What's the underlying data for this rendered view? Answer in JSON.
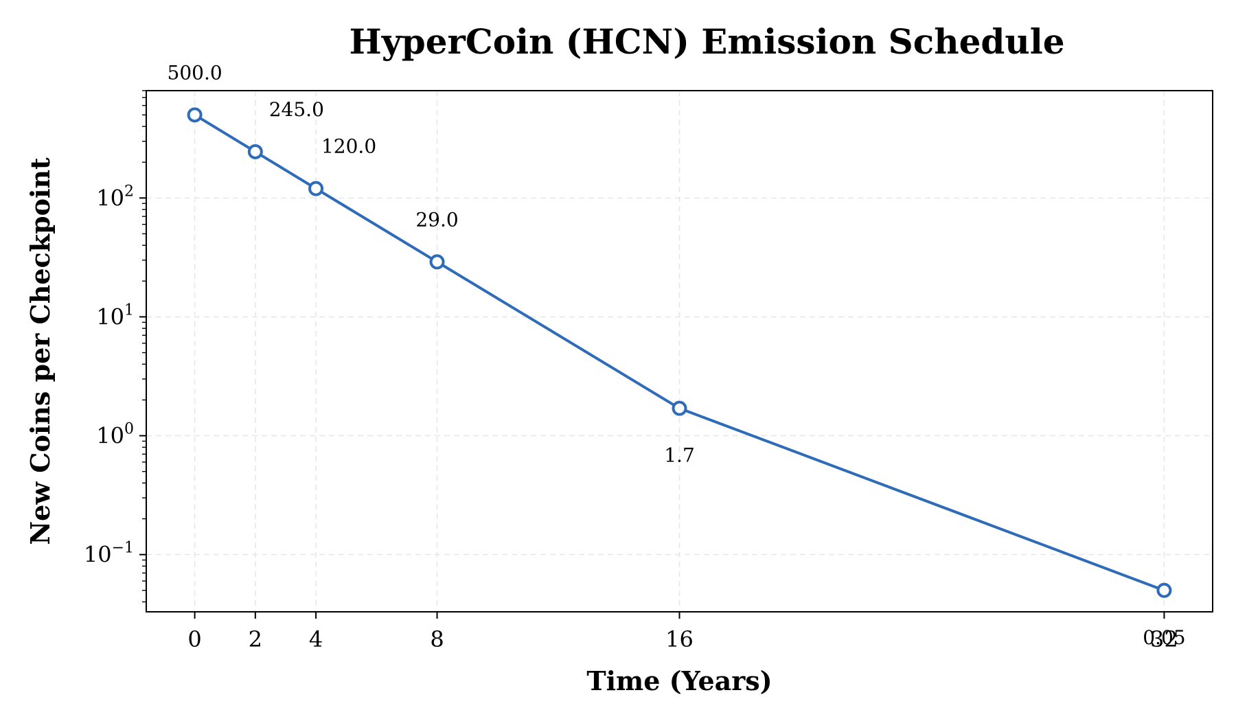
{
  "chart_data": {
    "type": "line",
    "title": "HyperCoin (HCN) Emission Schedule",
    "xlabel": "Time (Years)",
    "ylabel": "New Coins per Checkpoint",
    "x": [
      0,
      2,
      4,
      8,
      16,
      32
    ],
    "x_ticks": [
      "0",
      "2",
      "4",
      "8",
      "16",
      "32"
    ],
    "y_scale": "log",
    "y_ticks": [
      {
        "base": "10",
        "exp": "2",
        "value": 100
      },
      {
        "base": "10",
        "exp": "1",
        "value": 10
      },
      {
        "base": "10",
        "exp": "0",
        "value": 1
      },
      {
        "base": "10",
        "exp": "−1",
        "value": 0.1
      }
    ],
    "xlim": [
      -1.6,
      33.6
    ],
    "ylim": [
      0.033,
      800
    ],
    "grid": true,
    "series": [
      {
        "color": "#2e6bb8",
        "values": [
          500.0,
          245.0,
          120.0,
          29.0,
          1.7,
          0.05
        ],
        "data_labels": [
          "500.0",
          "245.0",
          "120.0",
          "29.0",
          "1.7",
          "0.05"
        ]
      }
    ]
  }
}
